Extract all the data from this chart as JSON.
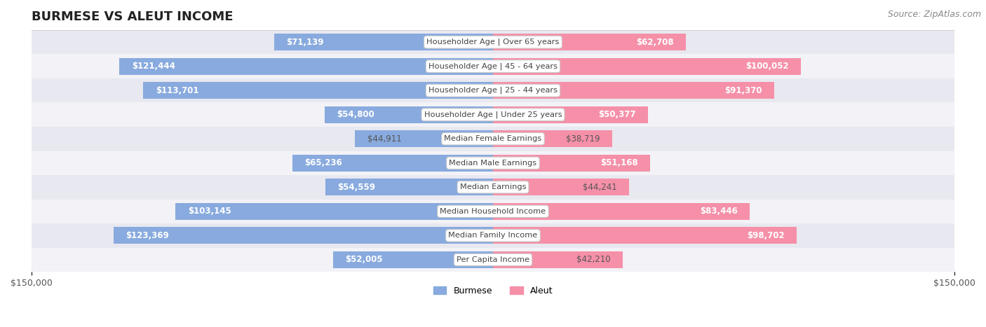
{
  "title": "BURMESE VS ALEUT INCOME",
  "source": "Source: ZipAtlas.com",
  "categories": [
    "Per Capita Income",
    "Median Family Income",
    "Median Household Income",
    "Median Earnings",
    "Median Male Earnings",
    "Median Female Earnings",
    "Householder Age | Under 25 years",
    "Householder Age | 25 - 44 years",
    "Householder Age | 45 - 64 years",
    "Householder Age | Over 65 years"
  ],
  "burmese_values": [
    52005,
    123369,
    103145,
    54559,
    65236,
    44911,
    54800,
    113701,
    121444,
    71139
  ],
  "aleut_values": [
    42210,
    98702,
    83446,
    44241,
    51168,
    38719,
    50377,
    91370,
    100052,
    62708
  ],
  "burmese_color": "#88AADE",
  "aleut_color": "#F590A8",
  "max_value": 150000,
  "row_bg_colors": [
    "#F2F2F7",
    "#E8E8F0"
  ],
  "title_fontsize": 13,
  "source_fontsize": 9,
  "value_fontsize": 8.5,
  "label_fontsize": 8.2,
  "axis_label_fontsize": 9,
  "background_color": "#FFFFFF",
  "inside_label_threshold": 45000
}
